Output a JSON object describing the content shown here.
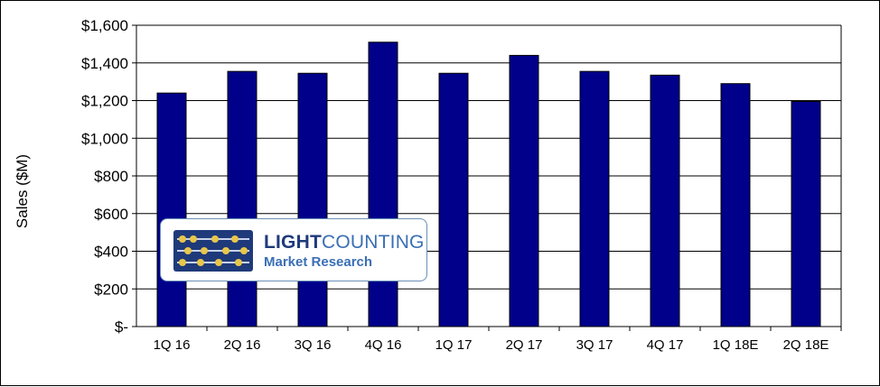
{
  "chart_data": {
    "type": "bar",
    "ylabel": "Sales ($M)",
    "xlabel": "",
    "ylim": [
      0,
      1600
    ],
    "grid": true,
    "yticks": [
      "$-",
      "$200",
      "$400",
      "$600",
      "$800",
      "$1,000",
      "$1,200",
      "$1,400",
      "$1,600"
    ],
    "categories": [
      "1Q 16",
      "2Q 16",
      "3Q 16",
      "4Q 16",
      "1Q 17",
      "2Q 17",
      "3Q 17",
      "4Q 17",
      "1Q 18E",
      "2Q 18E"
    ],
    "values": [
      1240,
      1355,
      1345,
      1510,
      1345,
      1440,
      1355,
      1335,
      1290,
      1195
    ],
    "bar_color": "#00008b"
  },
  "logo": {
    "name_part1": "LIGHT",
    "name_part2": "COUNTING",
    "subtitle": "Market Research",
    "icon": "abacus-logo-icon"
  }
}
